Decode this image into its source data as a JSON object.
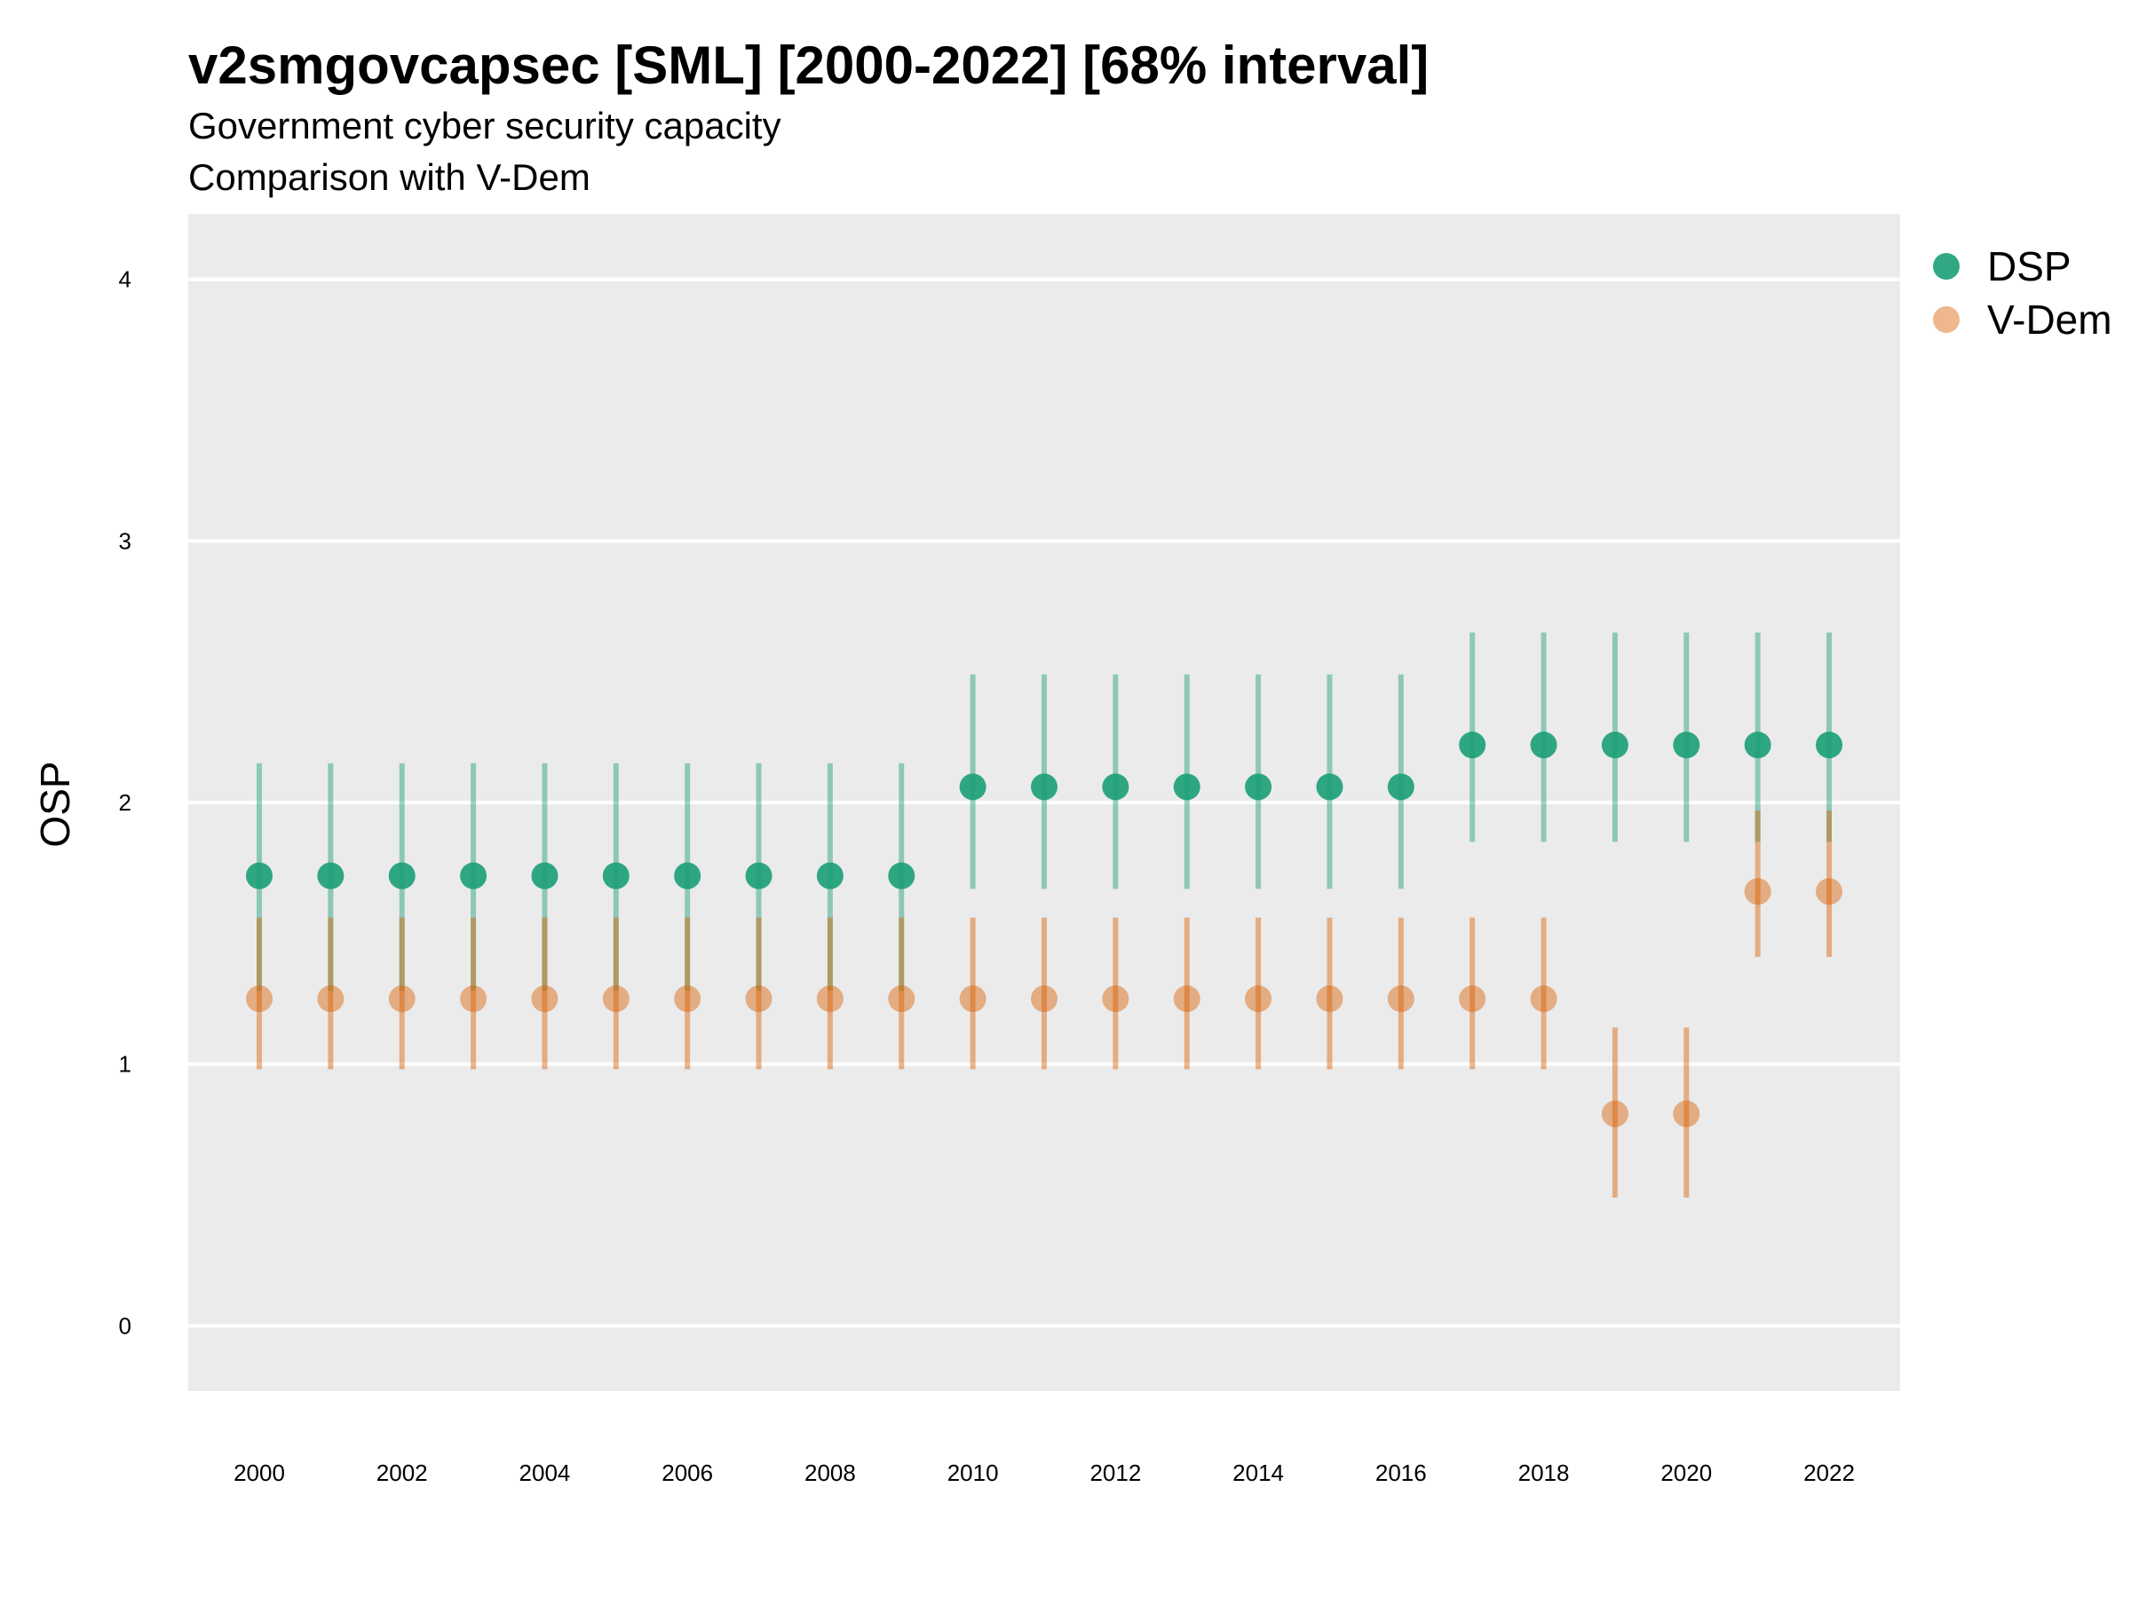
{
  "chart_data": {
    "type": "scatter",
    "title": "v2smgovcapsec [SML] [2000-2022] [68% interval]",
    "subtitle_lines": [
      "Government cyber security capacity",
      "Comparison with V-Dem"
    ],
    "xlabel": "",
    "ylabel": "OSP",
    "ylim": [
      -0.25,
      4.25
    ],
    "y_ticks": [
      0,
      1,
      2,
      3,
      4
    ],
    "x_tick_labels": [
      "2000",
      "2002",
      "2004",
      "2006",
      "2008",
      "2010",
      "2012",
      "2014",
      "2016",
      "2018",
      "2020",
      "2022"
    ],
    "grid": "horizontal",
    "legend_position": "right",
    "x": [
      2000,
      2001,
      2002,
      2003,
      2004,
      2005,
      2006,
      2007,
      2008,
      2009,
      2010,
      2011,
      2012,
      2013,
      2014,
      2015,
      2016,
      2017,
      2018,
      2019,
      2020,
      2021,
      2022
    ],
    "series": [
      {
        "name": "DSP",
        "color": "#1b9e77",
        "values": [
          1.72,
          1.72,
          1.72,
          1.72,
          1.72,
          1.72,
          1.72,
          1.72,
          1.72,
          1.72,
          2.06,
          2.06,
          2.06,
          2.06,
          2.06,
          2.06,
          2.06,
          2.22,
          2.22,
          2.22,
          2.22,
          2.22,
          2.22
        ],
        "lower": [
          1.28,
          1.28,
          1.28,
          1.28,
          1.28,
          1.28,
          1.28,
          1.28,
          1.28,
          1.28,
          1.67,
          1.67,
          1.67,
          1.67,
          1.67,
          1.67,
          1.67,
          1.85,
          1.85,
          1.85,
          1.85,
          1.85,
          1.85
        ],
        "upper": [
          2.15,
          2.15,
          2.15,
          2.15,
          2.15,
          2.15,
          2.15,
          2.15,
          2.15,
          2.15,
          2.49,
          2.49,
          2.49,
          2.49,
          2.49,
          2.49,
          2.49,
          2.65,
          2.65,
          2.65,
          2.65,
          2.65,
          2.65
        ]
      },
      {
        "name": "V-Dem",
        "color": "#d95f02",
        "values": [
          1.25,
          1.25,
          1.25,
          1.25,
          1.25,
          1.25,
          1.25,
          1.25,
          1.25,
          1.25,
          1.25,
          1.25,
          1.25,
          1.25,
          1.25,
          1.25,
          1.25,
          1.25,
          1.25,
          0.81,
          0.81,
          1.66,
          1.66
        ],
        "lower": [
          0.98,
          0.98,
          0.98,
          0.98,
          0.98,
          0.98,
          0.98,
          0.98,
          0.98,
          0.98,
          0.98,
          0.98,
          0.98,
          0.98,
          0.98,
          0.98,
          0.98,
          0.98,
          0.98,
          0.49,
          0.49,
          1.41,
          1.41
        ],
        "upper": [
          1.56,
          1.56,
          1.56,
          1.56,
          1.56,
          1.56,
          1.56,
          1.56,
          1.56,
          1.56,
          1.56,
          1.56,
          1.56,
          1.56,
          1.56,
          1.56,
          1.56,
          1.56,
          1.56,
          1.14,
          1.14,
          1.97,
          1.97
        ]
      }
    ]
  }
}
